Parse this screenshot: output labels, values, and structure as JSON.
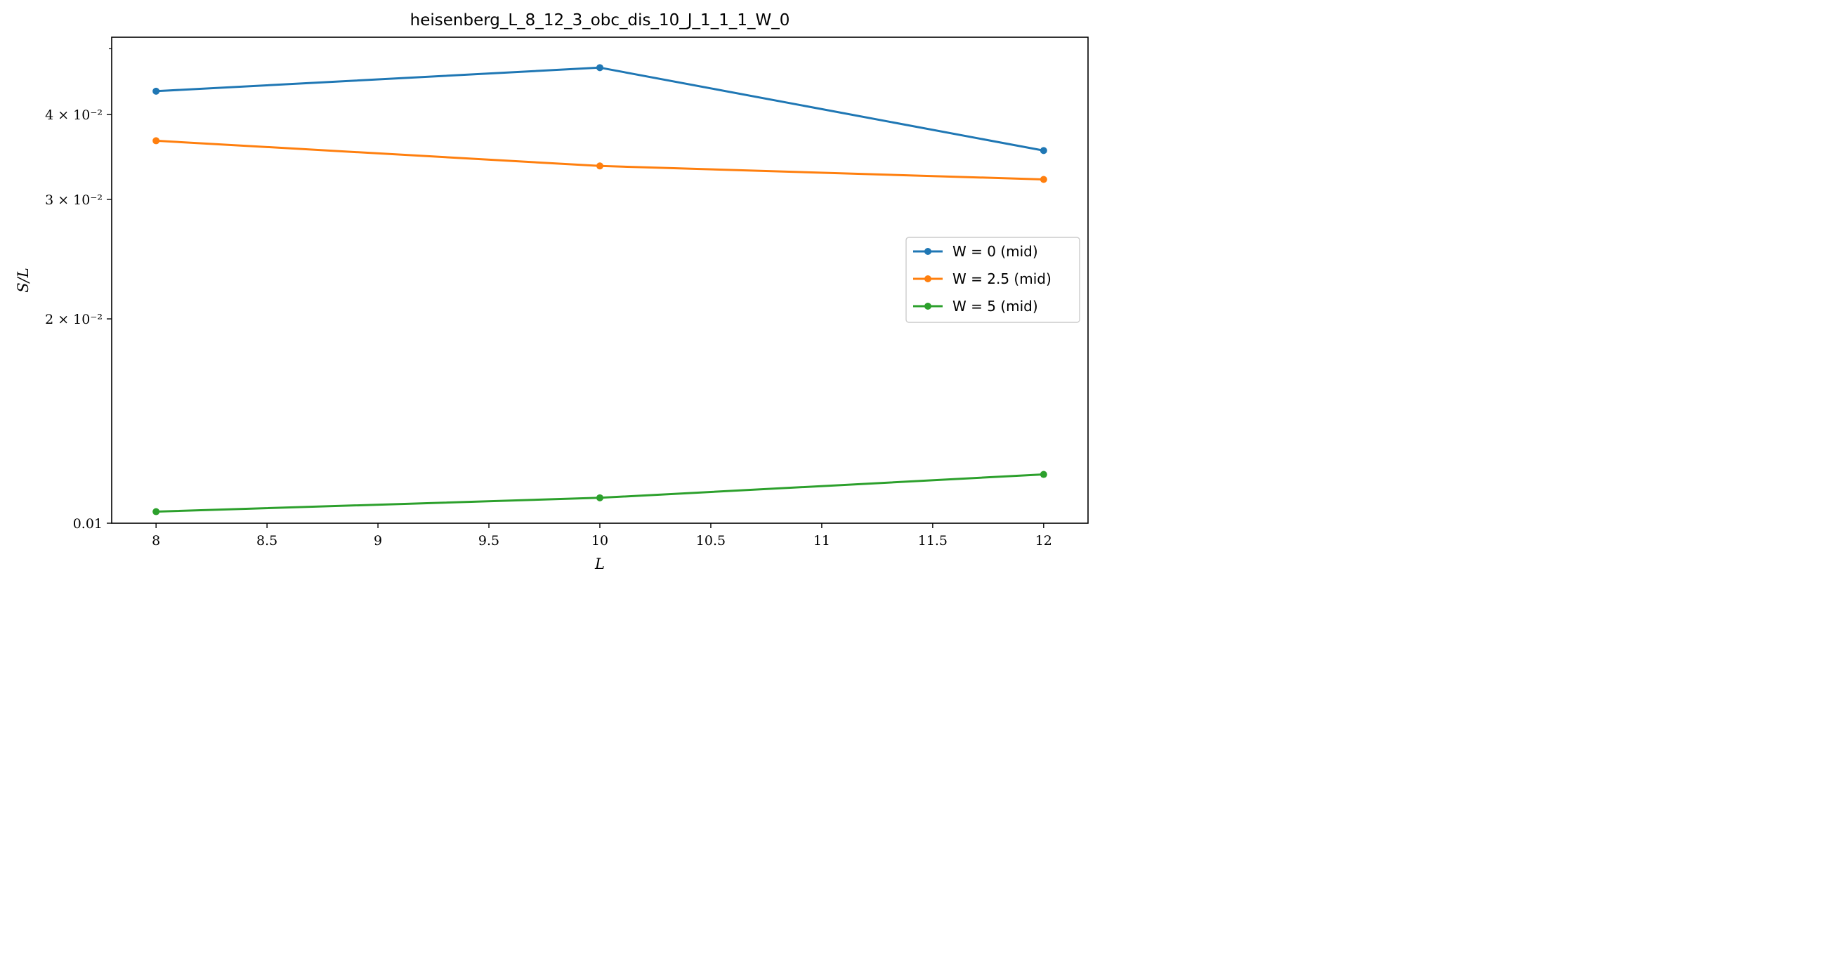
{
  "chart_data": {
    "type": "line",
    "title": "heisenberg_L_8_12_3_obc_dis_10_J_1_1_1_W_0",
    "xlabel": "L",
    "ylabel": "S/L",
    "yscale": "log",
    "xlim": [
      7.8,
      12.2
    ],
    "ylim": [
      0.01,
      0.052
    ],
    "x": [
      8,
      10,
      12
    ],
    "x_ticks": [
      {
        "value": 8,
        "label": "8"
      },
      {
        "value": 8.5,
        "label": "8.5"
      },
      {
        "value": 9,
        "label": "9"
      },
      {
        "value": 9.5,
        "label": "9.5"
      },
      {
        "value": 10,
        "label": "10"
      },
      {
        "value": 10.5,
        "label": "10.5"
      },
      {
        "value": 11,
        "label": "11"
      },
      {
        "value": 11.5,
        "label": "11.5"
      },
      {
        "value": 12,
        "label": "12"
      }
    ],
    "y_ticks": [
      {
        "value": 0.01,
        "label": "0.01"
      },
      {
        "value": 0.02,
        "label": "2 × 10⁻²"
      },
      {
        "value": 0.03,
        "label": "3 × 10⁻²"
      },
      {
        "value": 0.04,
        "label": "4 × 10⁻²"
      }
    ],
    "y_minor_ticks": [
      0.05
    ],
    "grid": false,
    "legend_position": "center-right",
    "series": [
      {
        "name": "W = 0 (mid)",
        "color": "#1f77b4",
        "values": [
          0.0433,
          0.0469,
          0.0354
        ]
      },
      {
        "name": "W = 2.5 (mid)",
        "color": "#ff7f0e",
        "values": [
          0.0366,
          0.0336,
          0.0321
        ]
      },
      {
        "name": "W = 5 (mid)",
        "color": "#2ca02c",
        "values": [
          0.0104,
          0.0109,
          0.0118
        ]
      }
    ]
  }
}
